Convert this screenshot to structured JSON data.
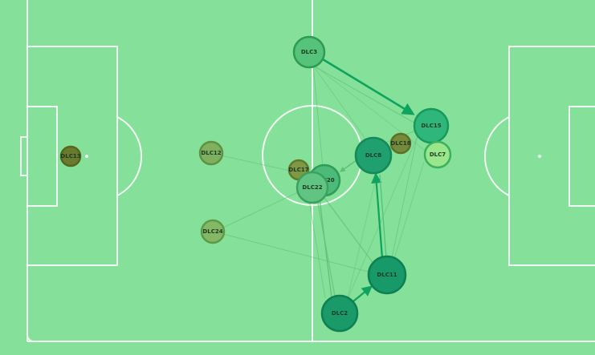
{
  "colors": {
    "pitch": "#85e09a",
    "lines": "#f2fff4",
    "pass_strong": "#0ea35e",
    "pass_weak": "#5fbf76"
  },
  "players": [
    {
      "id": "dlc3",
      "label": "DLC3",
      "fill": "#55c47a",
      "stroke": "#2e9a52"
    },
    {
      "id": "dlc15",
      "label": "DLC15",
      "fill": "#2fb67a",
      "stroke": "#159a5c"
    },
    {
      "id": "dlc18",
      "label": "DLC18",
      "fill": "#758a3a",
      "stroke": "#5c7026"
    },
    {
      "id": "dlc7",
      "label": "DLC7",
      "fill": "#9ae68c",
      "stroke": "#3cb05a"
    },
    {
      "id": "dlc8",
      "label": "DLC8",
      "fill": "#1fa06e",
      "stroke": "#138a58"
    },
    {
      "id": "dlc12",
      "label": "DLC12",
      "fill": "#7fb060",
      "stroke": "#5c9240"
    },
    {
      "id": "dlc13",
      "label": "DLC13",
      "fill": "#6a7a2e",
      "stroke": "#55661e"
    },
    {
      "id": "dlc17",
      "label": "DLC17",
      "fill": "#7e9844",
      "stroke": "#607a2c"
    },
    {
      "id": "dlc20",
      "label": "DLC20",
      "fill": "#4cba78",
      "stroke": "#2f9c58"
    },
    {
      "id": "dlc22",
      "label": "DLC22",
      "fill": "#62c482",
      "stroke": "#3aa25e"
    },
    {
      "id": "dlc24",
      "label": "DLC24",
      "fill": "#84b866",
      "stroke": "#5e9a46"
    },
    {
      "id": "dlc11",
      "label": "DLC11",
      "fill": "#17996a",
      "stroke": "#0d8050"
    },
    {
      "id": "dlc2",
      "label": "DLC2",
      "fill": "#1a9a68",
      "stroke": "#0e8052"
    }
  ]
}
